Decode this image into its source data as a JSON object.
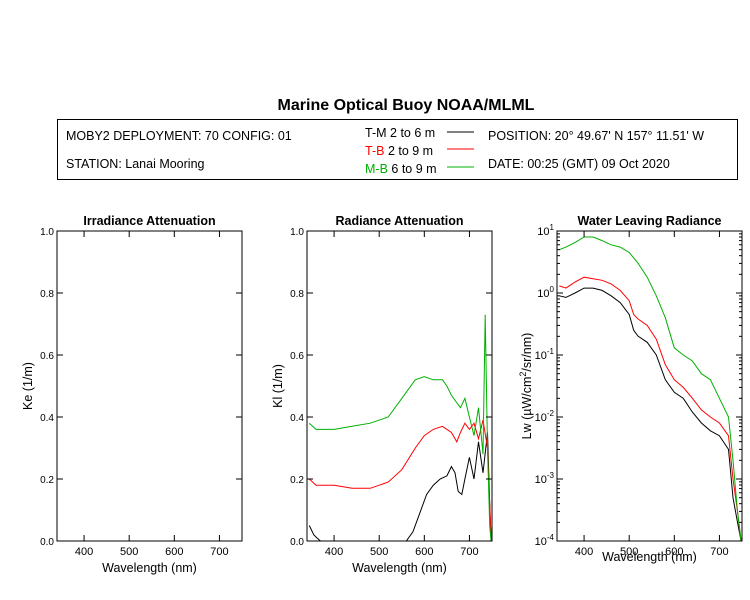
{
  "title": "Marine Optical Buoy NOAA/MLML",
  "info": {
    "deployment_config": "MOBY2 DEPLOYMENT: 70 CONFIG: 01",
    "station": "STATION: Lanai Mooring",
    "position": "POSITION: 20° 49.67' N   157° 11.51' W",
    "date": "DATE: 00:25 (GMT) 09 Oct 2020",
    "legend": [
      {
        "code": "T-M",
        "range": "2 to 6  m",
        "color": "#000000"
      },
      {
        "code": "T-B",
        "range": "2 to 9  m",
        "color": "#ff0000"
      },
      {
        "code": "M-B",
        "range": "6 to 9  m",
        "color": "#00b000"
      }
    ]
  },
  "chart_data": [
    {
      "type": "line",
      "title": "Irradiance Attenuation",
      "xlabel": "Wavelength (nm)",
      "ylabel": "Ke  (1/m)",
      "xlim": [
        340,
        750
      ],
      "ylim": [
        0,
        1
      ],
      "xticks": [
        400,
        500,
        600,
        700
      ],
      "yticks": [
        0,
        0.2,
        0.4,
        0.6,
        0.8,
        1
      ],
      "ytick_labels": [
        "0.0",
        "0.2",
        "0.4",
        "0.6",
        "0.8",
        "1.0"
      ],
      "series": []
    },
    {
      "type": "line",
      "title": "Radiance Attenuation",
      "xlabel": "Wavelength (nm)",
      "ylabel": "Kl  (1/m)",
      "xlim": [
        340,
        750
      ],
      "ylim": [
        0,
        1
      ],
      "xticks": [
        400,
        500,
        600,
        700
      ],
      "yticks": [
        0,
        0.2,
        0.4,
        0.6,
        0.8,
        1
      ],
      "ytick_labels": [
        "0.0",
        "0.2",
        "0.4",
        "0.6",
        "0.8",
        "1.0"
      ],
      "series": [
        {
          "name": "T-M 2 to 6 m",
          "color": "#000000",
          "x": [
            345,
            355,
            362,
            370,
            560,
            575,
            590,
            605,
            620,
            635,
            650,
            660,
            668,
            675,
            683,
            690,
            700,
            710,
            720,
            730,
            740,
            745,
            748
          ],
          "y": [
            0.05,
            0.02,
            0.01,
            0.0,
            0.0,
            0.03,
            0.09,
            0.15,
            0.18,
            0.2,
            0.21,
            0.24,
            0.22,
            0.16,
            0.15,
            0.2,
            0.27,
            0.2,
            0.32,
            0.22,
            0.35,
            0.12,
            0.0
          ]
        },
        {
          "name": "T-B 2 to 9 m",
          "color": "#ff0000",
          "x": [
            345,
            360,
            380,
            400,
            440,
            480,
            520,
            550,
            580,
            600,
            620,
            640,
            660,
            672,
            680,
            690,
            700,
            710,
            720,
            730,
            740,
            745,
            748
          ],
          "y": [
            0.2,
            0.18,
            0.18,
            0.18,
            0.17,
            0.17,
            0.19,
            0.23,
            0.3,
            0.34,
            0.36,
            0.37,
            0.35,
            0.32,
            0.35,
            0.38,
            0.36,
            0.38,
            0.33,
            0.39,
            0.3,
            0.12,
            0.0
          ]
        },
        {
          "name": "M-B 6 to 9 m",
          "color": "#00b000",
          "x": [
            345,
            360,
            380,
            400,
            440,
            480,
            520,
            550,
            580,
            600,
            620,
            640,
            650,
            660,
            670,
            680,
            690,
            700,
            710,
            720,
            730,
            735,
            740,
            745,
            748
          ],
          "y": [
            0.38,
            0.36,
            0.36,
            0.36,
            0.37,
            0.38,
            0.4,
            0.46,
            0.52,
            0.53,
            0.52,
            0.52,
            0.5,
            0.47,
            0.45,
            0.43,
            0.46,
            0.4,
            0.34,
            0.43,
            0.28,
            0.73,
            0.3,
            0.05,
            0.0
          ]
        }
      ]
    },
    {
      "type": "line",
      "title": "Water Leaving Radiance",
      "xlabel": "Wavelength (nm)",
      "ylabel": "Lw  (µW/cm²/sr/nm)",
      "xlim": [
        340,
        750
      ],
      "ylim": [
        0.0001,
        10
      ],
      "yscale": "log",
      "xticks": [
        400,
        500,
        600,
        700
      ],
      "yticks": [
        10,
        1,
        0.1,
        0.01,
        0.001,
        0.0001
      ],
      "ytick_exponents": [
        "1",
        "0",
        "-1",
        "-2",
        "-3",
        "-4"
      ],
      "series": [
        {
          "name": "T-M 2 to 6 m",
          "color": "#000000",
          "x": [
            345,
            360,
            380,
            400,
            420,
            440,
            460,
            480,
            500,
            510,
            520,
            540,
            560,
            580,
            600,
            620,
            640,
            660,
            680,
            700,
            720,
            730,
            740,
            748
          ],
          "y": [
            0.9,
            0.85,
            1.0,
            1.2,
            1.2,
            1.1,
            0.9,
            0.7,
            0.45,
            0.25,
            0.2,
            0.16,
            0.1,
            0.04,
            0.025,
            0.02,
            0.012,
            0.008,
            0.006,
            0.005,
            0.003,
            0.0005,
            0.0002,
            0.0001
          ]
        },
        {
          "name": "T-B 2 to 9 m",
          "color": "#ff0000",
          "x": [
            345,
            360,
            380,
            400,
            420,
            440,
            460,
            480,
            500,
            510,
            520,
            540,
            560,
            580,
            600,
            620,
            640,
            660,
            680,
            700,
            720,
            730,
            740,
            748
          ],
          "y": [
            1.3,
            1.2,
            1.5,
            1.8,
            1.7,
            1.6,
            1.4,
            1.1,
            0.75,
            0.45,
            0.38,
            0.3,
            0.18,
            0.07,
            0.04,
            0.03,
            0.02,
            0.013,
            0.01,
            0.008,
            0.005,
            0.001,
            0.0003,
            0.0001
          ]
        },
        {
          "name": "M-B 6 to 9 m",
          "color": "#00b000",
          "x": [
            345,
            360,
            380,
            400,
            420,
            440,
            460,
            480,
            500,
            520,
            540,
            560,
            580,
            600,
            620,
            640,
            660,
            680,
            700,
            720,
            730,
            740,
            748
          ],
          "y": [
            5.0,
            5.5,
            6.5,
            8.0,
            8.0,
            7.0,
            6.0,
            5.5,
            4.5,
            3.0,
            1.8,
            0.9,
            0.4,
            0.13,
            0.1,
            0.08,
            0.05,
            0.04,
            0.02,
            0.01,
            0.002,
            0.0003,
            0.0001
          ]
        }
      ]
    }
  ]
}
